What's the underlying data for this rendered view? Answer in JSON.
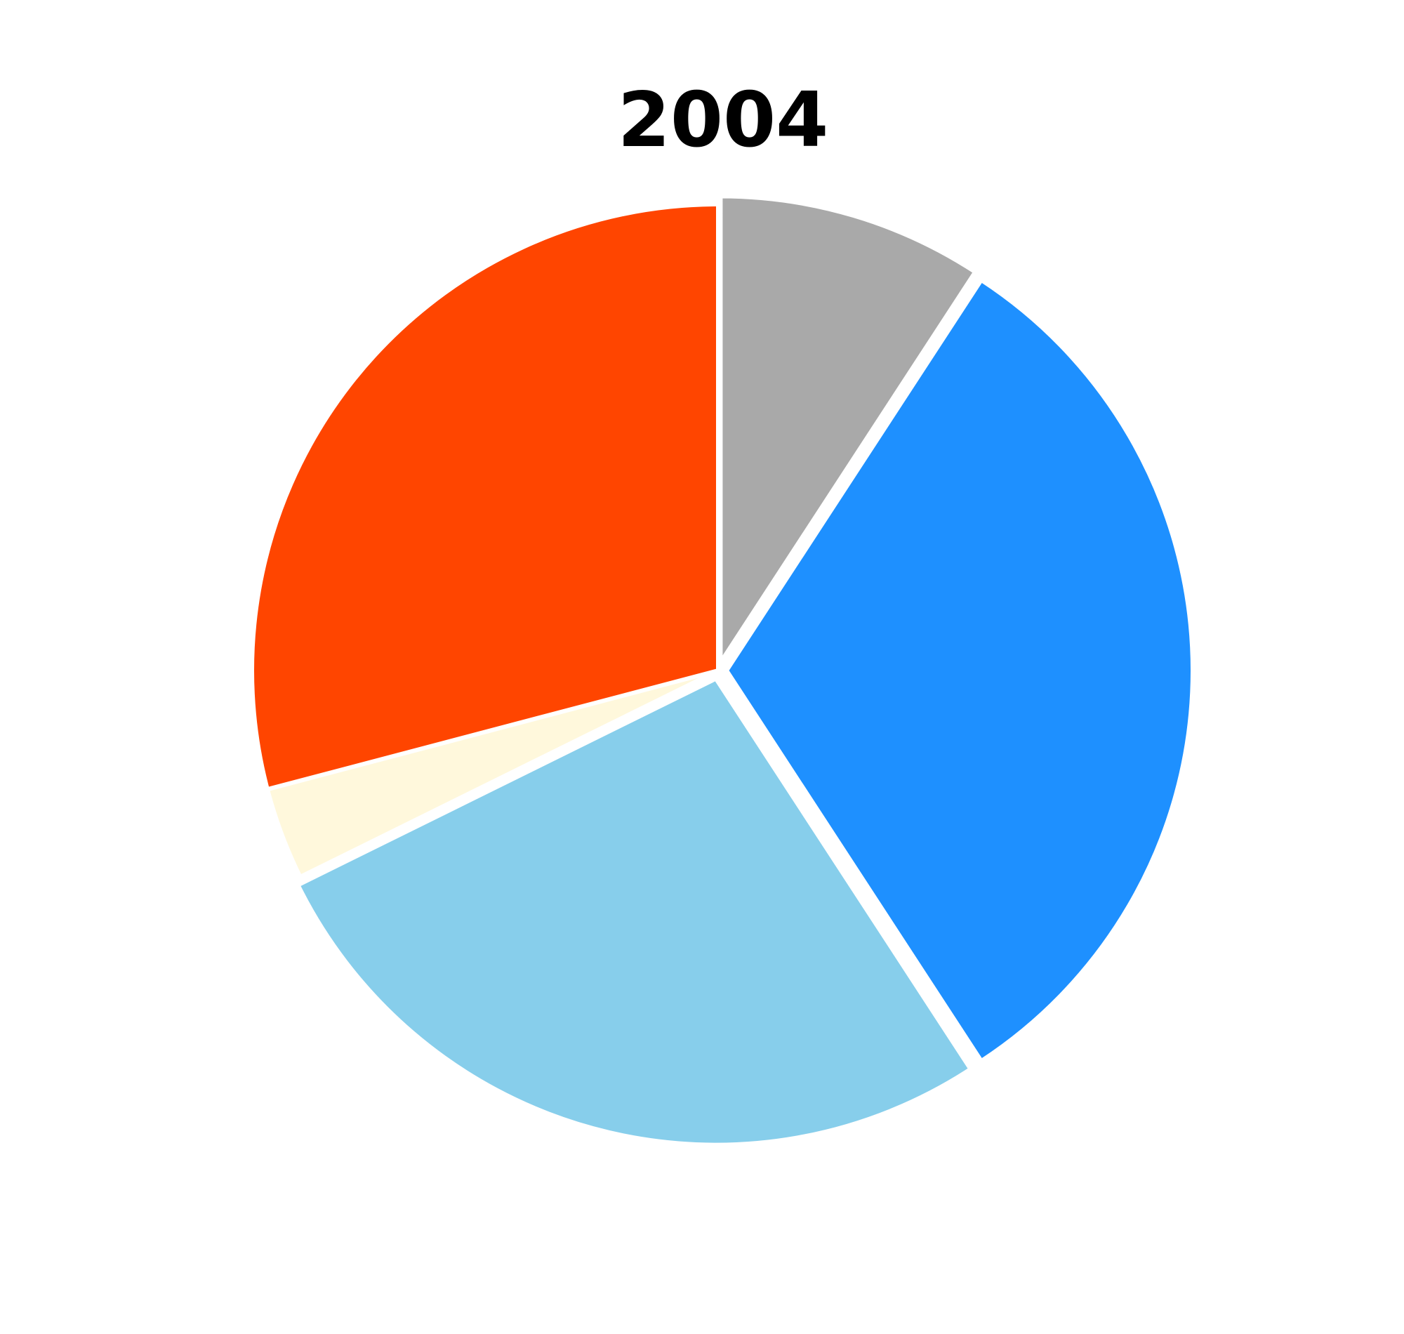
{
  "chart_data": {
    "type": "pie",
    "title": "2004",
    "start": "12 o'clock",
    "direction": "clockwise",
    "slices": [
      {
        "value": 9.2,
        "color": "#A9A9A9",
        "exploded": true
      },
      {
        "value": 31.6,
        "color": "#1E90FF",
        "exploded": true
      },
      {
        "value": 26.9,
        "color": "#87CEEB",
        "exploded": true
      },
      {
        "value": 3.2,
        "color": "#FFF8DC",
        "exploded": false
      },
      {
        "value": 29.1,
        "color": "#FF4500",
        "exploded": false
      }
    ],
    "slice_border_color": "#FFFFFF",
    "legend": "none"
  }
}
